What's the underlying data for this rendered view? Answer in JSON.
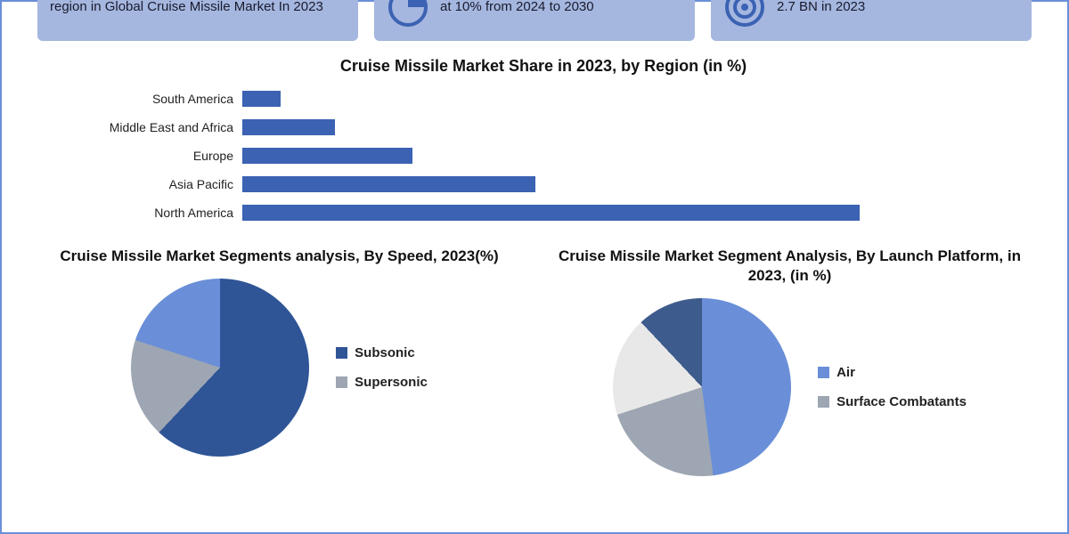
{
  "cards": [
    {
      "text": "region in Global Cruise Missile Market In 2023"
    },
    {
      "text": "at 10% from 2024 to 2030"
    },
    {
      "text": "2.7 BN in 2023"
    }
  ],
  "bar_chart": {
    "title": "Cruise Missile Market Share in 2023, by Region (in %)",
    "bar_color": "#3b62b3",
    "max": 100,
    "rows": [
      {
        "label": "South America",
        "value": 5
      },
      {
        "label": "Middle East and Africa",
        "value": 12
      },
      {
        "label": "Europe",
        "value": 22
      },
      {
        "label": "Asia Pacific",
        "value": 38
      },
      {
        "label": "North America",
        "value": 80
      }
    ]
  },
  "pie_speed": {
    "title": "Cruise Missile Market Segments analysis, By Speed, 2023(%)",
    "slices": [
      {
        "label": "Subsonic",
        "value": 62,
        "color": "#2f5597"
      },
      {
        "label": "Supersonic",
        "value": 18,
        "color": "#9da6b2"
      },
      {
        "label": "_hypersonic",
        "value": 20,
        "color": "#6a8fd8"
      }
    ],
    "legend_visible": [
      "Subsonic",
      "Supersonic"
    ]
  },
  "pie_platform": {
    "title": "Cruise Missile Market Segment Analysis, By Launch Platform, in 2023, (in %)",
    "slices": [
      {
        "label": "Air",
        "value": 48,
        "color": "#6a8fd8"
      },
      {
        "label": "Surface Combatants",
        "value": 22,
        "color": "#9da6b2"
      },
      {
        "label": "_submarine",
        "value": 18,
        "color": "#e8e8e8"
      },
      {
        "label": "_land",
        "value": 12,
        "color": "#3d5b8c"
      }
    ],
    "legend_visible": [
      "Air",
      "Surface Combatants"
    ]
  },
  "colors": {
    "card_bg": "#a5b7df",
    "card_icon_stroke": "#3b62b3",
    "border": "#6a8fd8"
  }
}
